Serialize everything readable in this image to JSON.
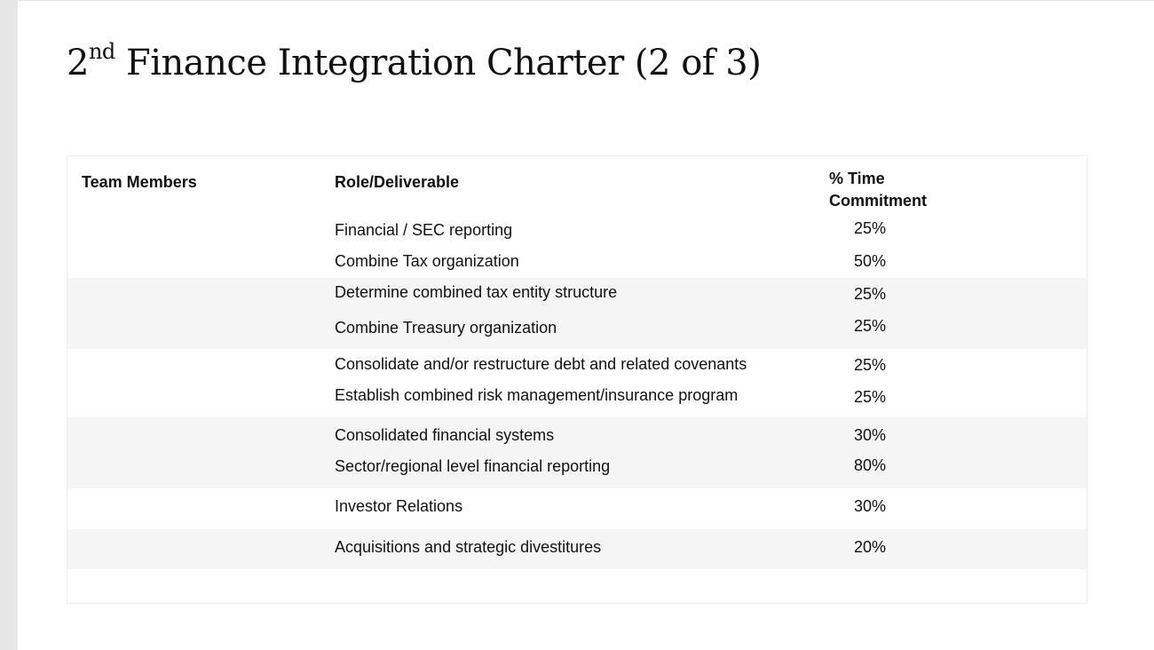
{
  "slide": {
    "title_prefix": "2",
    "title_superscript": "nd",
    "title_rest": " Finance Integration Charter (2 of 3)"
  },
  "table": {
    "headers": {
      "team_members": "Team Members",
      "role": "Role/Deliverable",
      "time_line1": "% Time",
      "time_line2": "Commitment"
    },
    "rows": [
      {
        "role": "Financial / SEC reporting",
        "time": "25%"
      },
      {
        "role": "Combine Tax organization",
        "time": "50%"
      },
      {
        "role": "Determine combined tax entity structure",
        "time": "25%"
      },
      {
        "role": "Combine Treasury organization",
        "time": "25%"
      },
      {
        "role": "Consolidate and/or restructure debt and related covenants",
        "time": "25%"
      },
      {
        "role": "Establish combined risk management/insurance program",
        "time": "25%"
      },
      {
        "role": "Consolidated financial systems",
        "time": "30%"
      },
      {
        "role": "Sector/regional level financial reporting",
        "time": "80%"
      },
      {
        "role": "Investor Relations",
        "time": "30%"
      },
      {
        "role": "Acquisitions and strategic divestitures",
        "time": "20%"
      }
    ]
  },
  "colors": {
    "band": "#f5f5f5",
    "left_strip": "#e6e6e6"
  }
}
